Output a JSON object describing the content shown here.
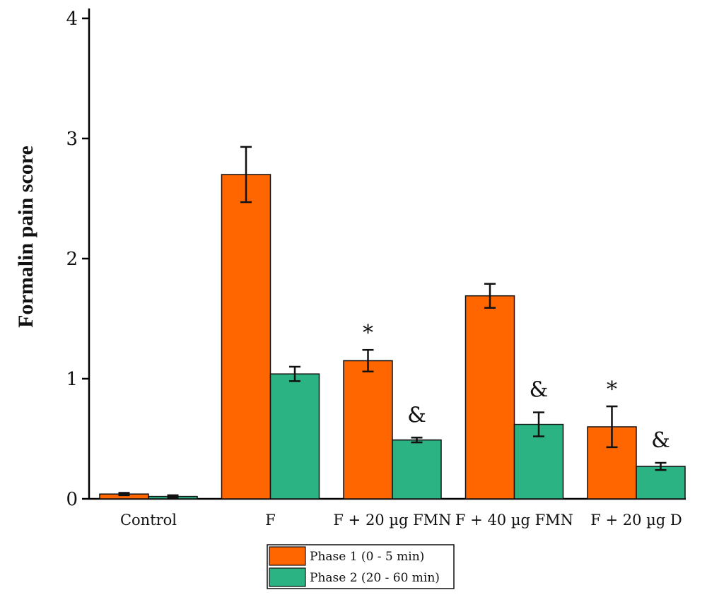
{
  "chart_data": {
    "type": "bar",
    "ylabel": "Formalin pain score",
    "xlabel": "",
    "ylim": [
      0,
      4
    ],
    "yticks": [
      "0",
      "1",
      "2",
      "3",
      "4"
    ],
    "categories": [
      "Control",
      "F",
      "F + 20 µg FMN",
      "F + 40 µg FMN",
      "F + 20 µg D"
    ],
    "series": [
      {
        "name": "Phase 1 (0 - 5 min)",
        "color": "#ff6600",
        "values": [
          0.04,
          2.7,
          1.15,
          1.69,
          0.6
        ],
        "errors": [
          0.01,
          0.23,
          0.09,
          0.1,
          0.17
        ],
        "annotations": [
          "",
          "",
          "*",
          "",
          "*"
        ]
      },
      {
        "name": "Phase 2 (20 - 60 min)",
        "color": "#2bb383",
        "values": [
          0.02,
          1.04,
          0.49,
          0.62,
          0.27
        ],
        "errors": [
          0.01,
          0.06,
          0.02,
          0.1,
          0.03
        ],
        "annotations": [
          "",
          "",
          "&",
          "&",
          "&"
        ]
      }
    ],
    "grid": false,
    "legend_position": "bottom-center"
  }
}
